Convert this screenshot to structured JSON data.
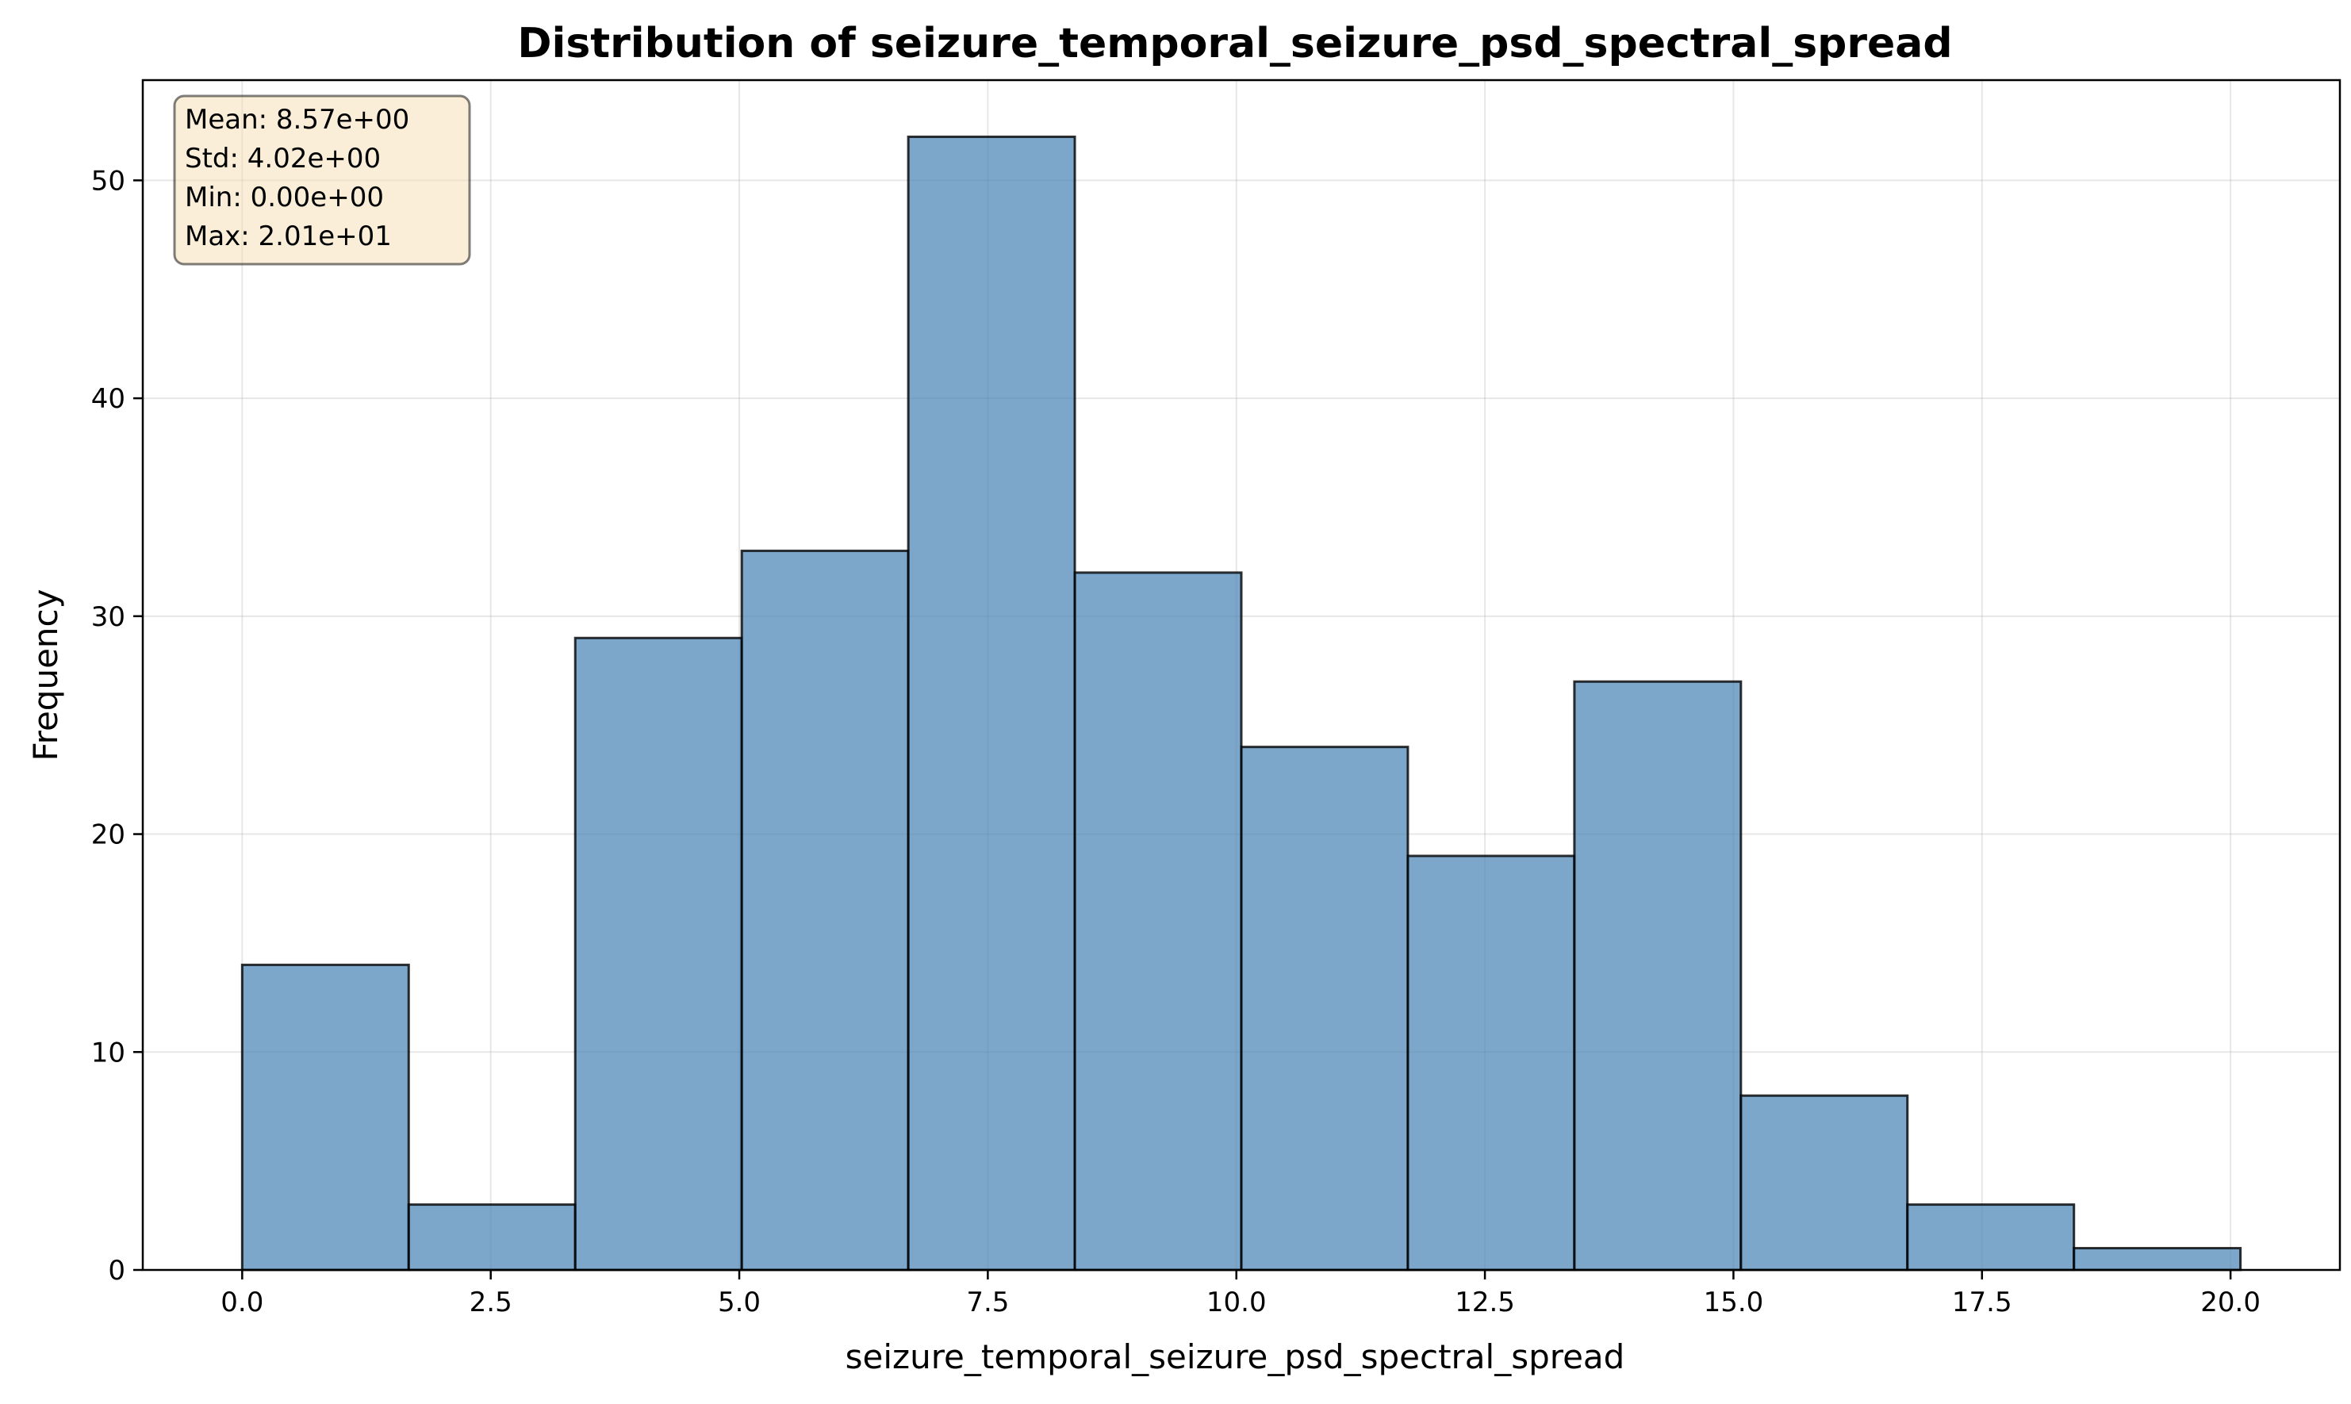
{
  "chart_data": {
    "type": "bar",
    "title": "Distribution of seizure_temporal_seizure_psd_spectral_spread",
    "xlabel": "seizure_temporal_seizure_psd_spectral_spread",
    "ylabel": "Frequency",
    "xlim": [
      -1.0,
      21.1
    ],
    "ylim": [
      0,
      54.6
    ],
    "bin_edges": [
      0.0,
      1.675,
      3.35,
      5.025,
      6.7,
      8.375,
      10.05,
      11.725,
      13.4,
      15.075,
      16.75,
      18.425,
      20.1
    ],
    "values": [
      14,
      3,
      29,
      33,
      52,
      32,
      24,
      19,
      27,
      8,
      3,
      1
    ],
    "x_ticks": [
      0.0,
      2.5,
      5.0,
      7.5,
      10.0,
      12.5,
      15.0,
      17.5,
      20.0
    ],
    "x_tick_labels": [
      "0.0",
      "2.5",
      "5.0",
      "7.5",
      "10.0",
      "12.5",
      "15.0",
      "17.5",
      "20.0"
    ],
    "y_ticks": [
      0,
      10,
      20,
      30,
      40,
      50
    ],
    "y_tick_labels": [
      "0",
      "10",
      "20",
      "30",
      "40",
      "50"
    ],
    "grid": true,
    "bar_color": "#4682b4",
    "stats_box": {
      "position": "top-left",
      "background": "#f5deb3",
      "lines": [
        "Mean: 8.57e+00",
        "Std: 4.02e+00",
        "Min: 0.00e+00",
        "Max: 2.01e+01"
      ]
    }
  }
}
